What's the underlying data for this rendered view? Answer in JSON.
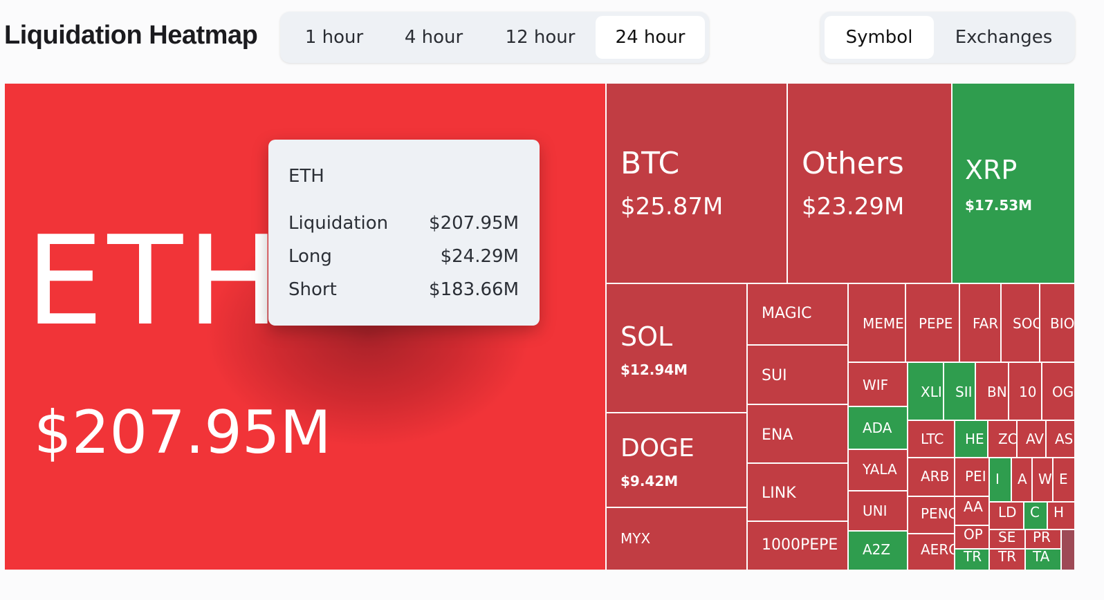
{
  "header": {
    "title": "Liquidation Heatmap",
    "timeframes": [
      "1 hour",
      "4 hour",
      "12 hour",
      "24 hour"
    ],
    "active_timeframe": "24 hour",
    "views": [
      "Symbol",
      "Exchanges"
    ],
    "active_view": "Symbol"
  },
  "colors": {
    "liquidation_red": "#c13d43",
    "highlight_red": "#f13438",
    "positive_green": "#2f9d4e"
  },
  "tooltip": {
    "symbol": "ETH",
    "rows": [
      {
        "label": "Liquidation",
        "value": "$207.95M"
      },
      {
        "label": "Long",
        "value": "$24.29M"
      },
      {
        "label": "Short",
        "value": "$183.66M"
      }
    ]
  },
  "tiles": [
    {
      "symbol": "ETH",
      "value": "$207.95M",
      "color": "highlight_red"
    },
    {
      "symbol": "BTC",
      "value": "$25.87M",
      "color": "red"
    },
    {
      "symbol": "Others",
      "value": "$23.29M",
      "color": "red"
    },
    {
      "symbol": "XRP",
      "value": "$17.53M",
      "color": "green"
    },
    {
      "symbol": "SOL",
      "value": "$12.94M",
      "color": "red"
    },
    {
      "symbol": "DOGE",
      "value": "$9.42M",
      "color": "red"
    },
    {
      "symbol": "MYX",
      "color": "red"
    },
    {
      "symbol": "MAGIC",
      "color": "red"
    },
    {
      "symbol": "SUI",
      "color": "red"
    },
    {
      "symbol": "ENA",
      "color": "red"
    },
    {
      "symbol": "LINK",
      "color": "red"
    },
    {
      "symbol": "1000PEPE",
      "color": "red"
    },
    {
      "symbol": "MEME",
      "color": "red"
    },
    {
      "symbol": "PEPE",
      "color": "red"
    },
    {
      "symbol": "FAR",
      "color": "red"
    },
    {
      "symbol": "SOC",
      "color": "red"
    },
    {
      "symbol": "BIO",
      "color": "red"
    },
    {
      "symbol": "WIF",
      "color": "red"
    },
    {
      "symbol": "ADA",
      "color": "green"
    },
    {
      "symbol": "YALA",
      "color": "red"
    },
    {
      "symbol": "UNI",
      "color": "red"
    },
    {
      "symbol": "A2Z",
      "color": "green"
    },
    {
      "symbol": "XLI",
      "color": "green"
    },
    {
      "symbol": "SII",
      "color": "green"
    },
    {
      "symbol": "BN",
      "color": "red"
    },
    {
      "symbol": "10",
      "color": "red"
    },
    {
      "symbol": "OG",
      "color": "red"
    },
    {
      "symbol": "LTC",
      "color": "red"
    },
    {
      "symbol": "HE",
      "color": "green"
    },
    {
      "symbol": "ZC",
      "color": "red"
    },
    {
      "symbol": "AV",
      "color": "red"
    },
    {
      "symbol": "AS",
      "color": "red"
    },
    {
      "symbol": "ARB",
      "color": "red"
    },
    {
      "symbol": "PEI",
      "color": "red"
    },
    {
      "symbol": "I",
      "color": "green"
    },
    {
      "symbol": "A",
      "color": "red"
    },
    {
      "symbol": "W",
      "color": "red"
    },
    {
      "symbol": "E",
      "color": "red"
    },
    {
      "symbol": "AA",
      "color": "red"
    },
    {
      "symbol": "PENG",
      "color": "red"
    },
    {
      "symbol": "LD",
      "color": "red"
    },
    {
      "symbol": "C",
      "color": "green"
    },
    {
      "symbol": "H",
      "color": "red"
    },
    {
      "symbol": "OP",
      "color": "red"
    },
    {
      "symbol": "SE",
      "color": "red"
    },
    {
      "symbol": "PR",
      "color": "red"
    },
    {
      "symbol": "AERO",
      "color": "red"
    },
    {
      "symbol": "TR",
      "color": "green"
    },
    {
      "symbol": "TR",
      "color": "red"
    },
    {
      "symbol": "TA",
      "color": "green"
    },
    {
      "color": "mauve"
    }
  ]
}
